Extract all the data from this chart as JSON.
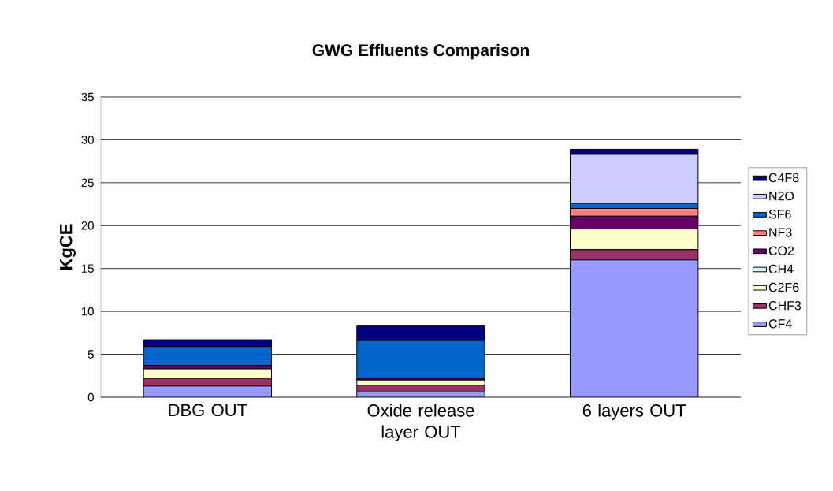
{
  "chart_data": {
    "type": "bar",
    "title": "GWG Effluents Comparison",
    "ylabel": "KgCE",
    "categories": [
      "DBG  OUT",
      "Oxide release layer OUT",
      "6 layers OUT"
    ],
    "stacked": true,
    "grid": "y",
    "legend": "right",
    "ylim": [
      0,
      35
    ],
    "yticks": [
      0,
      5,
      10,
      15,
      20,
      25,
      30,
      35
    ],
    "series": [
      {
        "name": "CF4",
        "color": "#9999ff",
        "values": [
          1.3,
          0.6,
          16.0
        ]
      },
      {
        "name": "CHF3",
        "color": "#993366",
        "values": [
          0.9,
          0.8,
          1.2
        ]
      },
      {
        "name": "C2F6",
        "color": "#ffffcc",
        "values": [
          1.1,
          0.6,
          2.4
        ]
      },
      {
        "name": "CH4",
        "color": "#ccffff",
        "values": [
          0,
          0,
          0
        ]
      },
      {
        "name": "CO2",
        "color": "#660066",
        "values": [
          0.4,
          0.2,
          1.5
        ]
      },
      {
        "name": "NF3",
        "color": "#ff8080",
        "values": [
          0,
          0,
          0.9
        ]
      },
      {
        "name": "SF6",
        "color": "#0066cc",
        "values": [
          2.2,
          4.4,
          0.6
        ]
      },
      {
        "name": "N2O",
        "color": "#ccccff",
        "values": [
          0,
          0,
          5.7
        ]
      },
      {
        "name": "C4F8",
        "color": "#000080",
        "values": [
          0.8,
          1.7,
          0.6
        ]
      }
    ]
  }
}
